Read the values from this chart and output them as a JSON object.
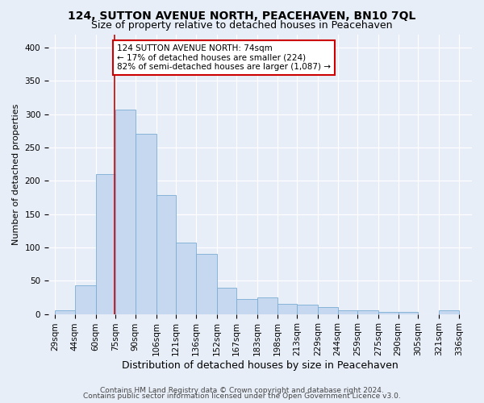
{
  "title": "124, SUTTON AVENUE NORTH, PEACEHAVEN, BN10 7QL",
  "subtitle": "Size of property relative to detached houses in Peacehaven",
  "xlabel": "Distribution of detached houses by size in Peacehaven",
  "ylabel": "Number of detached properties",
  "footer_line1": "Contains HM Land Registry data © Crown copyright and database right 2024.",
  "footer_line2": "Contains public sector information licensed under the Open Government Licence v3.0.",
  "bin_labels": [
    "29sqm",
    "44sqm",
    "60sqm",
    "75sqm",
    "90sqm",
    "106sqm",
    "121sqm",
    "136sqm",
    "152sqm",
    "167sqm",
    "183sqm",
    "198sqm",
    "213sqm",
    "229sqm",
    "244sqm",
    "259sqm",
    "275sqm",
    "290sqm",
    "305sqm",
    "321sqm",
    "336sqm"
  ],
  "bar_values": [
    5,
    43,
    210,
    307,
    270,
    178,
    107,
    90,
    39,
    22,
    25,
    15,
    14,
    11,
    6,
    6,
    3,
    3,
    0,
    5
  ],
  "bar_color": "#c5d8f0",
  "bar_edge_color": "#7aadd4",
  "ylim": [
    0,
    420
  ],
  "yticks": [
    0,
    50,
    100,
    150,
    200,
    250,
    300,
    350,
    400
  ],
  "property_line_x": 74,
  "annotation_line1": "124 SUTTON AVENUE NORTH: 74sqm",
  "annotation_line2": "← 17% of detached houses are smaller (224)",
  "annotation_line3": "82% of semi-detached houses are larger (1,087) →",
  "annotation_box_color": "#ffffff",
  "annotation_border_color": "#cc0000",
  "vline_color": "#cc0000",
  "background_color": "#e8eef8",
  "plot_background": "#e8eef8",
  "grid_color": "#ffffff",
  "title_fontsize": 10,
  "subtitle_fontsize": 9,
  "ylabel_fontsize": 8,
  "xlabel_fontsize": 9,
  "tick_fontsize": 7.5,
  "annotation_fontsize": 7.5,
  "footer_fontsize": 6.5
}
